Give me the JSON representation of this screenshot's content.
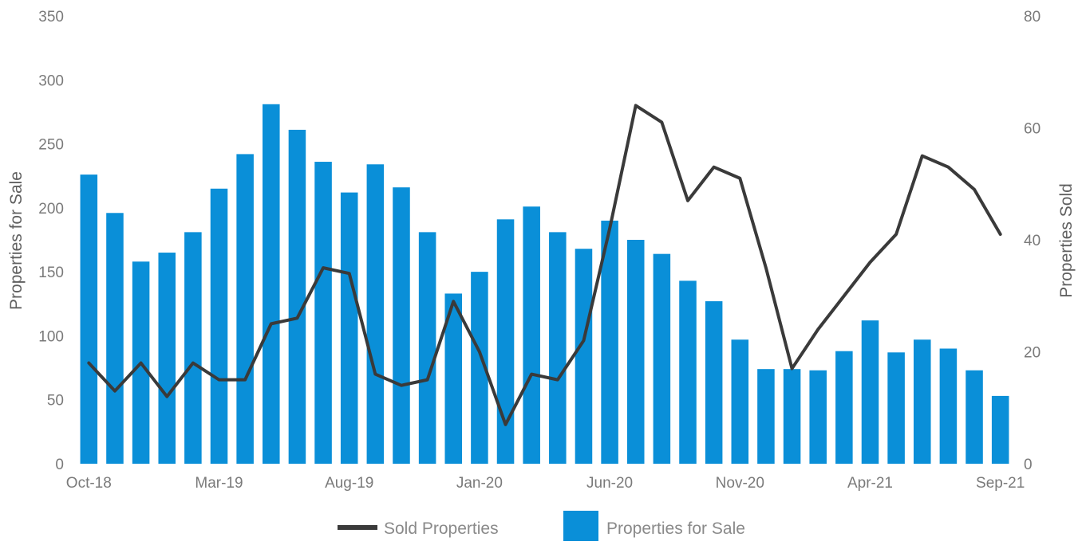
{
  "chart_data": {
    "type": "bar",
    "combo": "bar+line",
    "categories": [
      "Oct-18",
      "Nov-18",
      "Dec-18",
      "Jan-19",
      "Feb-19",
      "Mar-19",
      "Apr-19",
      "May-19",
      "Jun-19",
      "Jul-19",
      "Aug-19",
      "Sep-19",
      "Oct-19",
      "Nov-19",
      "Dec-19",
      "Jan-20",
      "Feb-20",
      "Mar-20",
      "Apr-20",
      "May-20",
      "Jun-20",
      "Jul-20",
      "Aug-20",
      "Sep-20",
      "Oct-20",
      "Nov-20",
      "Dec-20",
      "Jan-21",
      "Feb-21",
      "Mar-21",
      "Apr-21",
      "May-21",
      "Jun-21",
      "Jul-21",
      "Aug-21",
      "Sep-21"
    ],
    "tick_labels": [
      "Oct-18",
      "Mar-19",
      "Aug-19",
      "Jan-20",
      "Jun-20",
      "Nov-20",
      "Apr-21",
      "Sep-21"
    ],
    "tick_label_indices": [
      0,
      5,
      10,
      15,
      20,
      25,
      30,
      35
    ],
    "series": [
      {
        "name": "Properties for Sale",
        "type": "bar",
        "axis": "left",
        "color": "#0a8fd8",
        "values": [
          226,
          196,
          158,
          165,
          181,
          215,
          242,
          281,
          261,
          236,
          212,
          234,
          216,
          181,
          133,
          150,
          191,
          201,
          181,
          168,
          190,
          175,
          164,
          143,
          127,
          97,
          74,
          74,
          73,
          88,
          112,
          87,
          97,
          90,
          73,
          53
        ]
      },
      {
        "name": "Sold Properties",
        "type": "line",
        "axis": "right",
        "color": "#3a3a3a",
        "values": [
          18,
          13,
          18,
          12,
          18,
          15,
          15,
          25,
          26,
          35,
          34,
          16,
          14,
          15,
          29,
          20,
          7,
          16,
          15,
          22,
          42,
          64,
          61,
          47,
          53,
          51,
          35,
          17,
          24,
          30,
          36,
          41,
          55,
          53,
          49,
          41
        ]
      }
    ],
    "y_left": {
      "label": "Properties for Sale",
      "ylim": [
        0,
        350
      ],
      "ticks": [
        "0",
        "50",
        "100",
        "150",
        "200",
        "250",
        "300",
        "350"
      ]
    },
    "y_right": {
      "label": "Properties Sold",
      "ylim": [
        0,
        80
      ],
      "ticks": [
        "0",
        "20",
        "40",
        "60",
        "80"
      ]
    },
    "grid": false,
    "legend": {
      "placement": "bottom-center",
      "items": [
        "Sold Properties",
        "Properties for Sale"
      ]
    }
  }
}
